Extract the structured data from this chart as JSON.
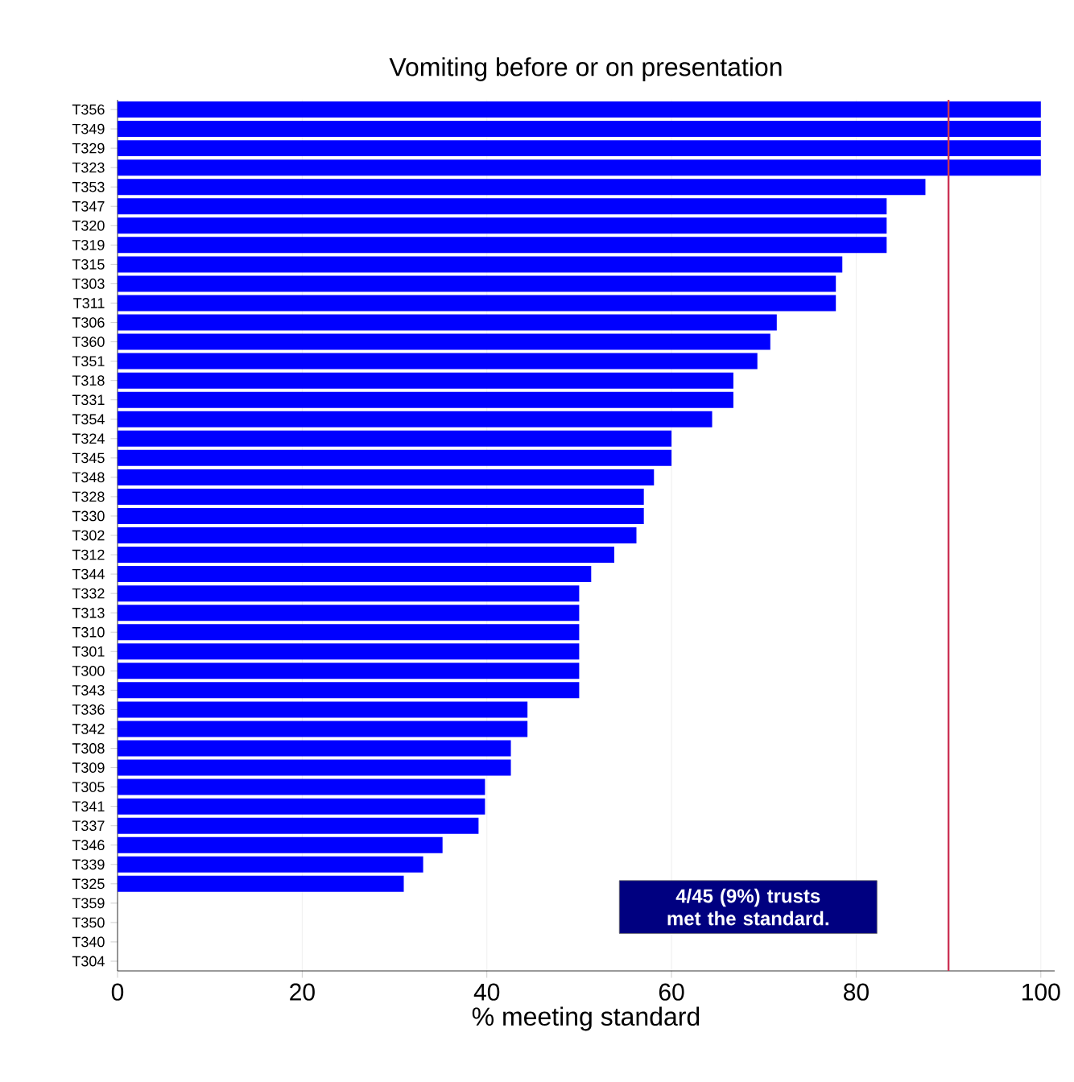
{
  "chart_data": {
    "type": "bar",
    "orientation": "horizontal",
    "title": "Vomiting before or on presentation",
    "xlabel": "% meeting standard",
    "categories": [
      "T356",
      "T349",
      "T329",
      "T323",
      "T353",
      "T347",
      "T320",
      "T319",
      "T315",
      "T303",
      "T311",
      "T306",
      "T360",
      "T351",
      "T318",
      "T331",
      "T354",
      "T324",
      "T345",
      "T348",
      "T328",
      "T330",
      "T302",
      "T312",
      "T344",
      "T332",
      "T313",
      "T310",
      "T301",
      "T300",
      "T343",
      "T336",
      "T342",
      "T308",
      "T309",
      "T305",
      "T341",
      "T337",
      "T346",
      "T339",
      "T325",
      "T359",
      "T350",
      "T340",
      "T304"
    ],
    "values": [
      100,
      100,
      100,
      100,
      87.5,
      83.3,
      83.3,
      83.3,
      78.5,
      77.8,
      77.8,
      71.4,
      70.7,
      69.3,
      66.7,
      66.7,
      64.4,
      60,
      60,
      58.1,
      57,
      57,
      56.2,
      53.8,
      51.3,
      50,
      50,
      50,
      50,
      50,
      50,
      44.4,
      44.4,
      42.6,
      42.6,
      39.8,
      39.8,
      39.1,
      35.2,
      33.1,
      31,
      null,
      null,
      null,
      null
    ],
    "color": "#0000ff",
    "xlim": [
      0,
      101.5
    ],
    "xticks": [
      0,
      20,
      40,
      60,
      80,
      100
    ],
    "grid": "x",
    "ref_lines": [
      {
        "axis": "x",
        "value": 90,
        "color": "#cc3355"
      }
    ],
    "annotations": [
      "4/45 (9%) trusts met the standard."
    ]
  }
}
